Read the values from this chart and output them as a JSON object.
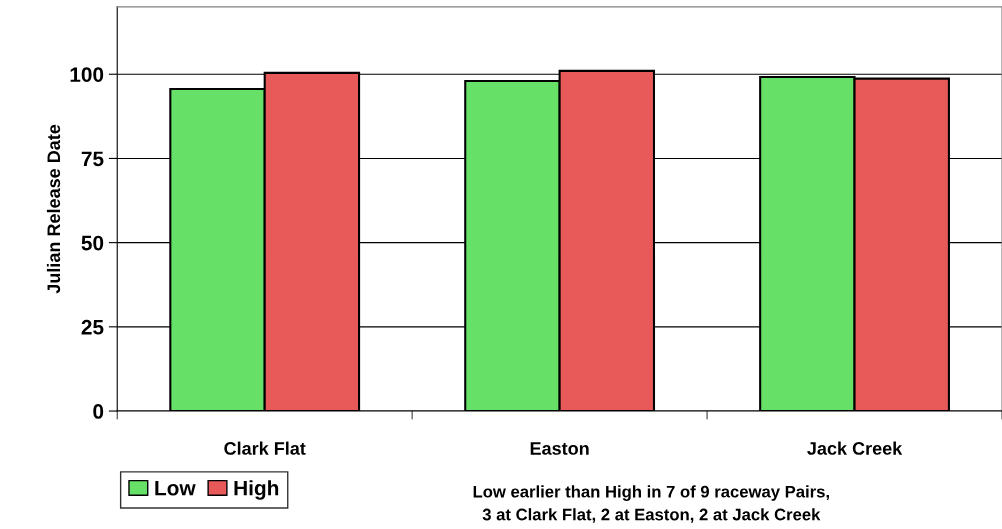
{
  "chart_data": {
    "type": "bar",
    "ylabel": "Julian Release Date",
    "categories": [
      "Clark Flat",
      "Easton",
      "Jack Creek"
    ],
    "series": [
      {
        "name": "Low",
        "color": "#66e066",
        "values": [
          95.6,
          98.0,
          99.2
        ]
      },
      {
        "name": "High",
        "color": "#e85a5a",
        "values": [
          100.4,
          101.0,
          98.7
        ]
      }
    ],
    "ylim": [
      0,
      120
    ],
    "yticks": [
      0,
      25,
      50,
      75,
      100
    ],
    "grid": "y",
    "legend": "bottom left",
    "annotations": [
      "Low earlier than High in 7 of 9 raceway Pairs,\n3 at Clark Flat, 2 at Easton, 2 at Jack Creek"
    ]
  }
}
